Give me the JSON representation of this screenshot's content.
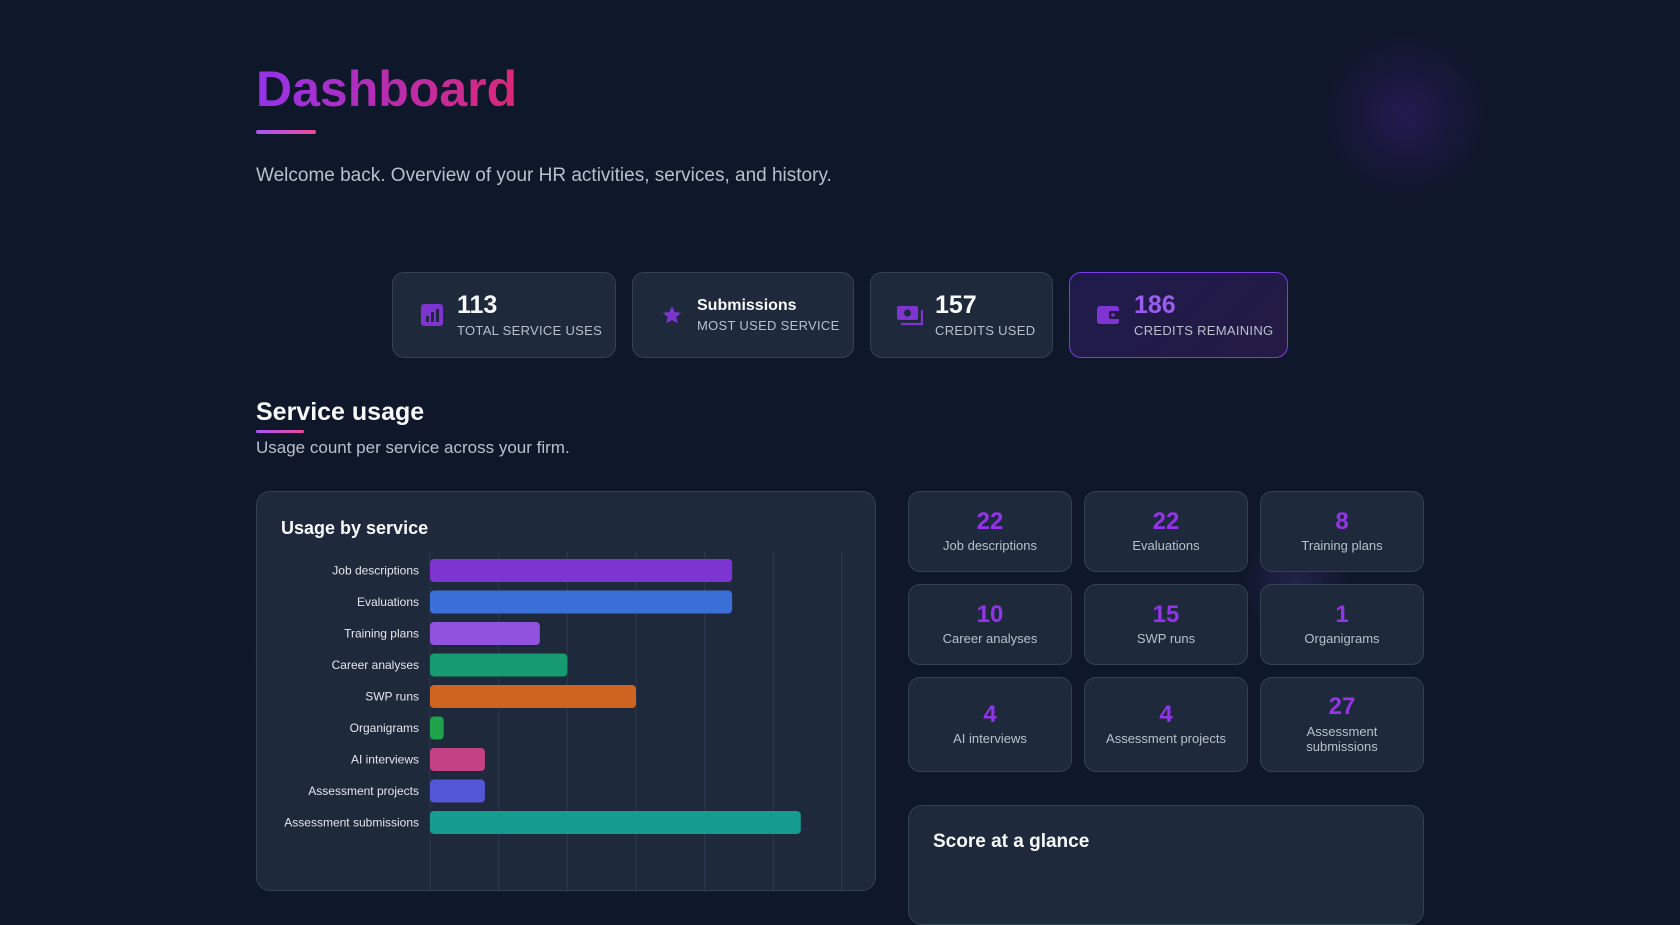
{
  "header": {
    "title": "Dashboard",
    "subtitle": "Welcome back. Overview of your HR activities, services, and history."
  },
  "stats": [
    {
      "value": "113",
      "label": "TOTAL SERVICE USES",
      "icon": "bar-chart-icon"
    },
    {
      "value": "Submissions",
      "label": "MOST USED SERVICE",
      "icon": "star-icon"
    },
    {
      "value": "157",
      "label": "CREDITS USED",
      "icon": "money-icon"
    },
    {
      "value": "186",
      "label": "CREDITS REMAINING",
      "icon": "wallet-icon",
      "highlighted": true
    }
  ],
  "service_usage": {
    "title": "Service usage",
    "subtitle": "Usage count per service across your firm."
  },
  "chart_card": {
    "title": "Usage by service"
  },
  "chart_data": {
    "type": "bar",
    "orientation": "horizontal",
    "title": "Usage by service",
    "xlabel": "",
    "ylabel": "",
    "categories": [
      "Job descriptions",
      "Evaluations",
      "Training plans",
      "Career analyses",
      "SWP runs",
      "Organigrams",
      "AI interviews",
      "Assessment projects",
      "Assessment submissions"
    ],
    "values": [
      22,
      22,
      8,
      10,
      15,
      1,
      4,
      4,
      27
    ],
    "colors": [
      "#7e34d1",
      "#3b6fd8",
      "#9152dd",
      "#169a6f",
      "#cf6420",
      "#1fa24a",
      "#c44186",
      "#5357d6",
      "#169c8e"
    ],
    "xlim": [
      0,
      30
    ],
    "grid": true
  },
  "service_tiles": [
    {
      "value": "22",
      "label": "Job descriptions"
    },
    {
      "value": "22",
      "label": "Evaluations"
    },
    {
      "value": "8",
      "label": "Training plans"
    },
    {
      "value": "10",
      "label": "Career analyses"
    },
    {
      "value": "15",
      "label": "SWP runs"
    },
    {
      "value": "1",
      "label": "Organigrams"
    },
    {
      "value": "4",
      "label": "AI interviews"
    },
    {
      "value": "4",
      "label": "Assessment projects"
    },
    {
      "value": "27",
      "label": "Assessment submissions"
    }
  ],
  "score_card": {
    "title": "Score at a glance"
  },
  "colors": {
    "background": "#0f172a",
    "card": "#1e293b",
    "accent_purple": "#9333ea",
    "accent_pink": "#db2777"
  }
}
